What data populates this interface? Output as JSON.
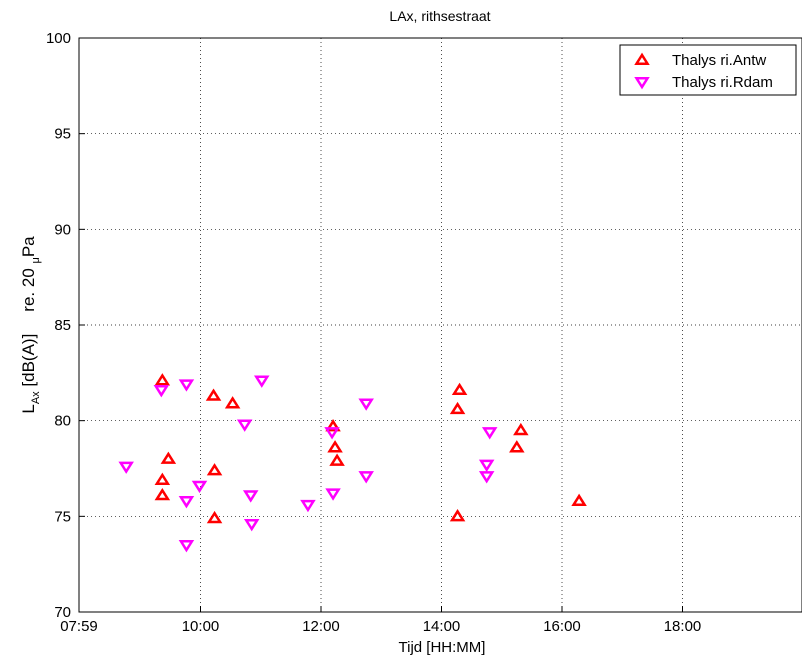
{
  "chart_data": {
    "type": "scatter",
    "title": "LAx, rithsestraat",
    "xlabel": "Tijd [HH:MM]",
    "ylabel": {
      "main": "L",
      "subscript": "Ax",
      "unit": " [dB(A)]",
      "ref_prefix": "re. 20 ",
      "ref_mu": "μ",
      "ref_suffix": "Pa"
    },
    "x_ticks": [
      "07:59",
      "10:00",
      "12:00",
      "14:00",
      "16:00",
      "18:00"
    ],
    "y_ticks": [
      "70",
      "75",
      "80",
      "85",
      "90",
      "95",
      "100"
    ],
    "xlim": [
      "07:59",
      "19:59"
    ],
    "ylim": [
      70,
      100
    ],
    "grid": true,
    "legend_position": "top-right",
    "series": [
      {
        "name": "Thalys ri.Antw",
        "marker": "triangle-up",
        "color": "#ff0000",
        "points": [
          {
            "x": "09:22",
            "y": 82.1
          },
          {
            "x": "09:22",
            "y": 76.9
          },
          {
            "x": "09:22",
            "y": 76.1
          },
          {
            "x": "09:28",
            "y": 78.0
          },
          {
            "x": "10:13",
            "y": 81.3
          },
          {
            "x": "10:14",
            "y": 77.4
          },
          {
            "x": "10:14",
            "y": 74.9
          },
          {
            "x": "10:32",
            "y": 80.9
          },
          {
            "x": "12:12",
            "y": 79.7
          },
          {
            "x": "12:14",
            "y": 78.6
          },
          {
            "x": "12:16",
            "y": 77.9
          },
          {
            "x": "14:16",
            "y": 80.6
          },
          {
            "x": "14:16",
            "y": 75.0
          },
          {
            "x": "14:18",
            "y": 81.6
          },
          {
            "x": "15:15",
            "y": 78.6
          },
          {
            "x": "15:19",
            "y": 79.5
          },
          {
            "x": "16:17",
            "y": 75.8
          }
        ]
      },
      {
        "name": "Thalys ri.Rdam",
        "marker": "triangle-down",
        "color": "#ff00ff",
        "points": [
          {
            "x": "08:46",
            "y": 77.6
          },
          {
            "x": "09:21",
            "y": 81.6
          },
          {
            "x": "09:46",
            "y": 81.9
          },
          {
            "x": "09:46",
            "y": 75.8
          },
          {
            "x": "09:46",
            "y": 73.5
          },
          {
            "x": "09:59",
            "y": 76.6
          },
          {
            "x": "10:44",
            "y": 79.8
          },
          {
            "x": "10:50",
            "y": 76.1
          },
          {
            "x": "10:51",
            "y": 74.6
          },
          {
            "x": "11:01",
            "y": 82.1
          },
          {
            "x": "11:47",
            "y": 75.6
          },
          {
            "x": "12:11",
            "y": 79.4
          },
          {
            "x": "12:12",
            "y": 76.2
          },
          {
            "x": "12:45",
            "y": 80.9
          },
          {
            "x": "12:45",
            "y": 77.1
          },
          {
            "x": "14:45",
            "y": 77.7
          },
          {
            "x": "14:45",
            "y": 77.1
          },
          {
            "x": "14:48",
            "y": 79.4
          }
        ]
      }
    ]
  }
}
